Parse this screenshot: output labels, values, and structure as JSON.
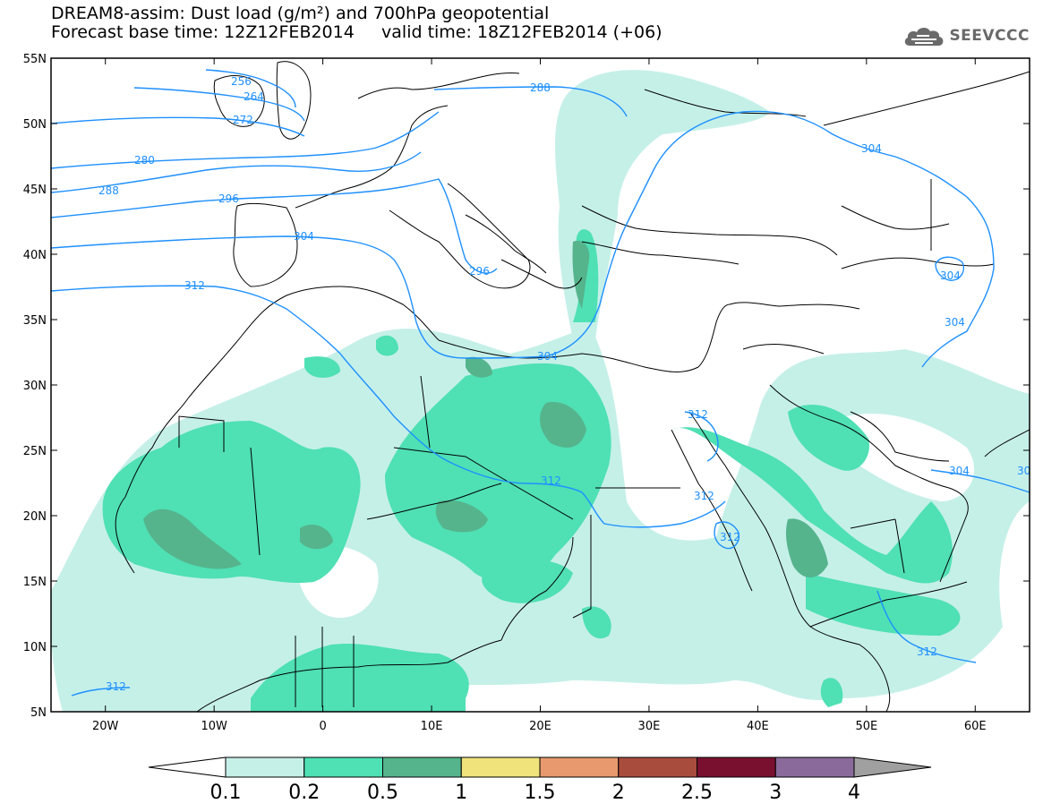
{
  "title": {
    "line1": "DREAM8-assim: Dust load (g/m²) and 700hPa geopotential",
    "line2": "Forecast base time: 12Z12FEB2014     valid time: 18Z12FEB2014 (+06)"
  },
  "logo": {
    "text": "SEEVCCC",
    "icon": "cloud-icon"
  },
  "map": {
    "lon_range": [
      -25,
      65
    ],
    "lat_range": [
      5,
      55
    ],
    "lon_ticks": [
      "20W",
      "10W",
      "0",
      "10E",
      "20E",
      "30E",
      "40E",
      "50E",
      "60E"
    ],
    "lat_ticks": [
      "55N",
      "50N",
      "45N",
      "40N",
      "35N",
      "30N",
      "25N",
      "20N",
      "15N",
      "10N",
      "5N"
    ]
  },
  "contours": {
    "color": "#1e90ff",
    "labels": [
      "256",
      "264",
      "272",
      "280",
      "288",
      "288",
      "296",
      "296",
      "304",
      "304",
      "304",
      "304",
      "304",
      "304",
      "30",
      "312",
      "312",
      "312",
      "312",
      "312",
      "312",
      "312"
    ]
  },
  "colorbar": {
    "labels": [
      "0.1",
      "0.2",
      "0.5",
      "1",
      "1.5",
      "2",
      "2.5",
      "3",
      "4"
    ],
    "colors": [
      "#ffffff",
      "#c5f0e8",
      "#4fe0b4",
      "#55b48c",
      "#f0e37c",
      "#e89a6e",
      "#a84c3e",
      "#7a1030",
      "#8a6a9a",
      "#a0a0a0"
    ]
  }
}
